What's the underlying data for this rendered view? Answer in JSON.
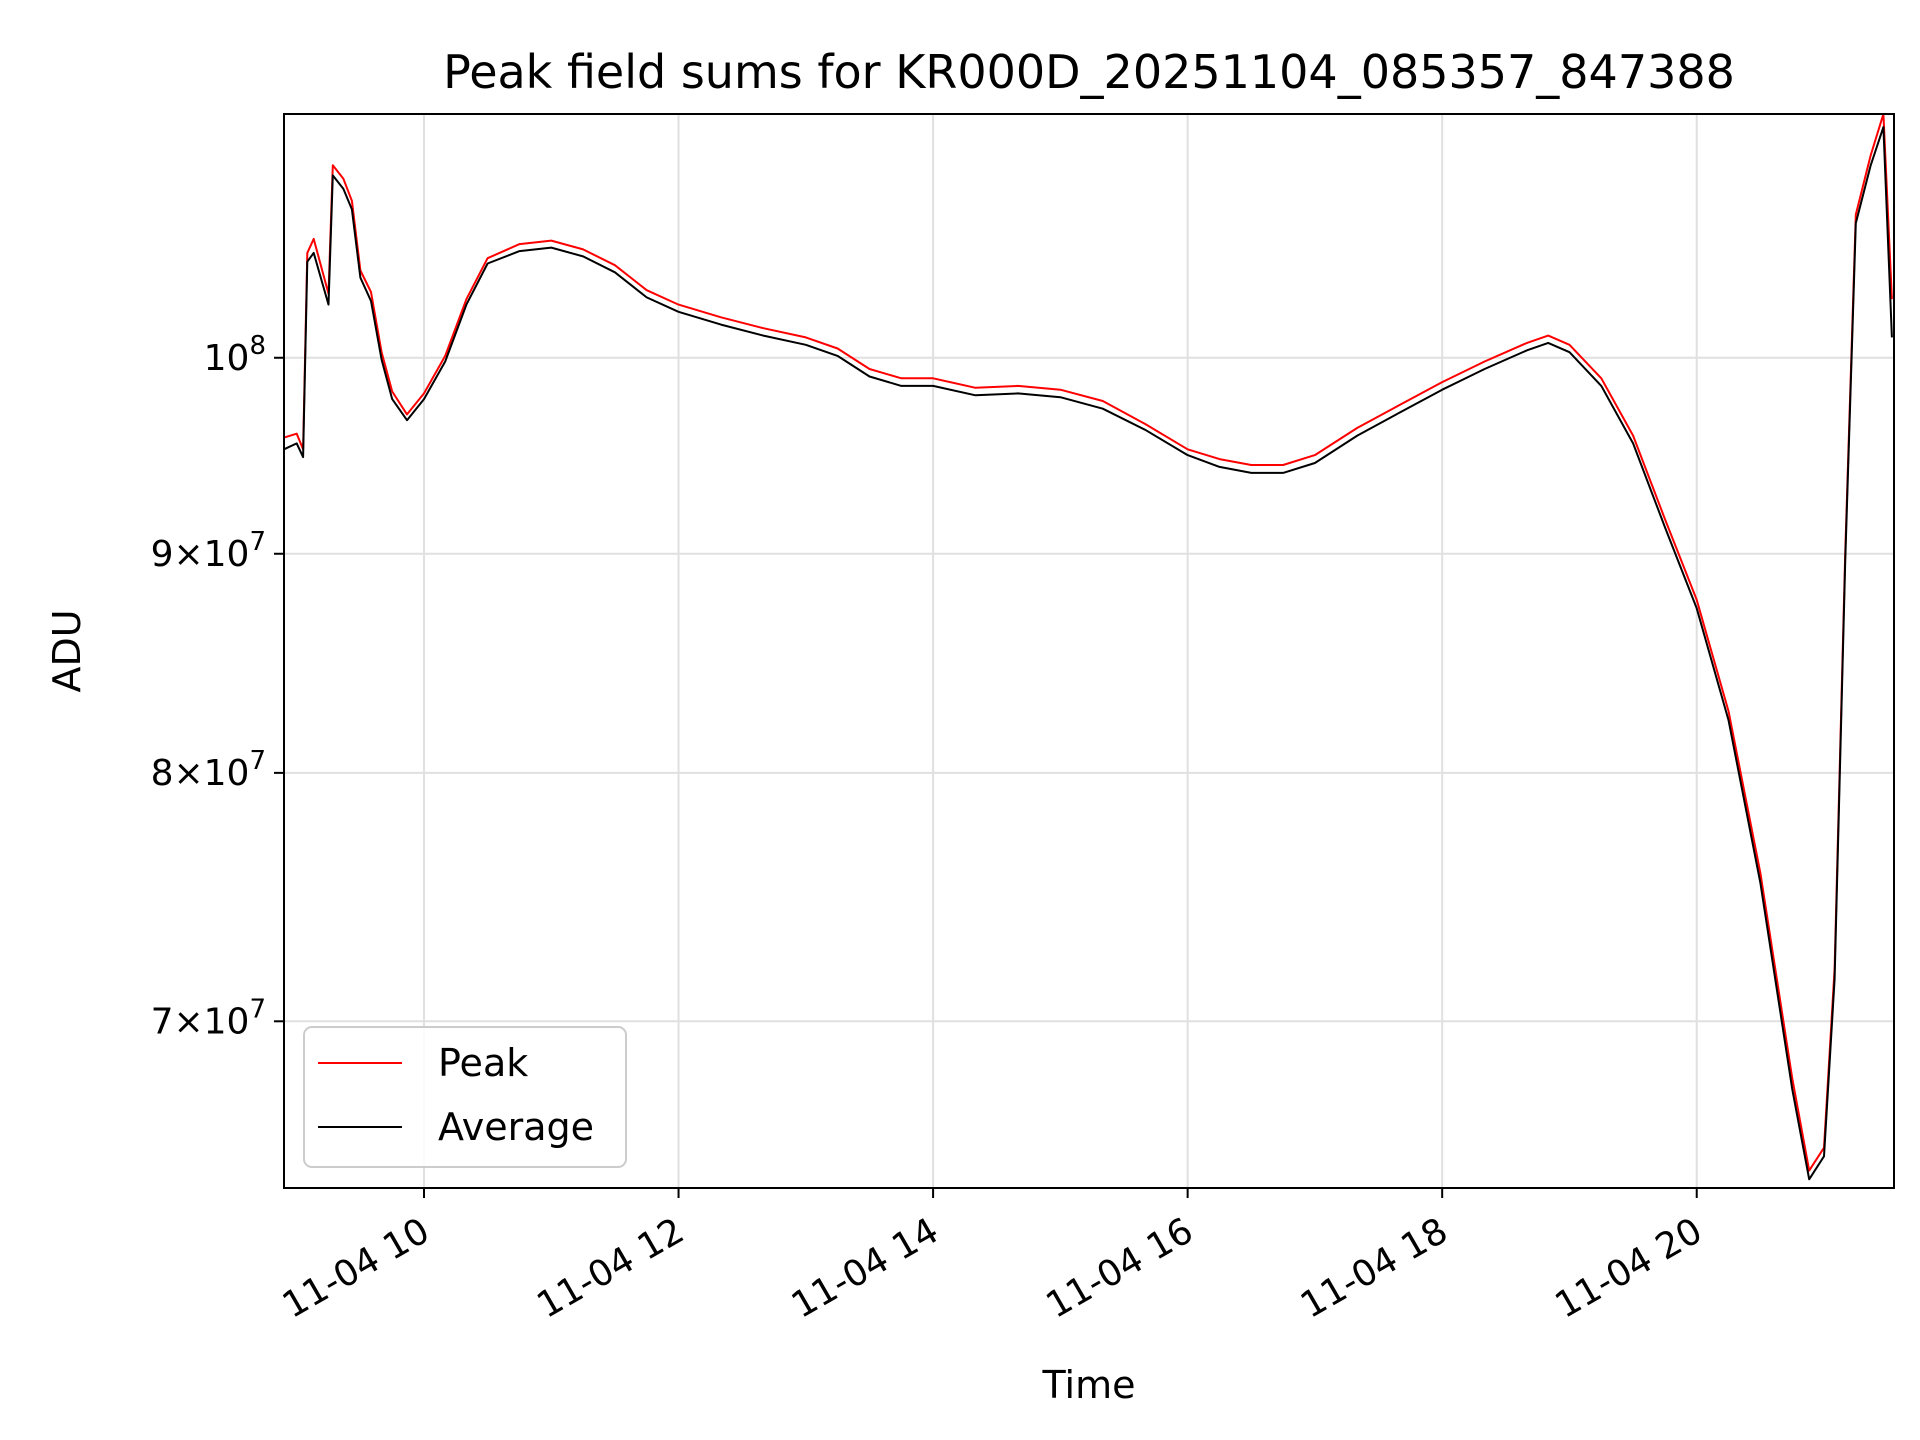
{
  "chart_data": {
    "type": "line",
    "title": "Peak field sums for KR000D_20251104_085357_847388",
    "xlabel": "Time",
    "ylabel": "ADU",
    "y_scale": "log",
    "ylim": [
      64000000,
      114000000
    ],
    "xlim": [
      "2025-11-04 08:54",
      "2025-11-04 21:33"
    ],
    "grid": true,
    "legend_position": "lower-left",
    "x_ticks": [
      {
        "value": "2025-11-04 10:00",
        "label": "11-04 10"
      },
      {
        "value": "2025-11-04 12:00",
        "label": "11-04 12"
      },
      {
        "value": "2025-11-04 14:00",
        "label": "11-04 14"
      },
      {
        "value": "2025-11-04 16:00",
        "label": "11-04 16"
      },
      {
        "value": "2025-11-04 18:00",
        "label": "11-04 18"
      },
      {
        "value": "2025-11-04 20:00",
        "label": "11-04 20"
      }
    ],
    "y_ticks": [
      {
        "value": 70000000,
        "label_mantissa": "7",
        "label_exponent": "7"
      },
      {
        "value": 80000000,
        "label_mantissa": "8",
        "label_exponent": "7"
      },
      {
        "value": 90000000,
        "label_mantissa": "9",
        "label_exponent": "7"
      },
      {
        "value": 100000000,
        "label_base": "10",
        "label_exponent": "8"
      }
    ],
    "series": [
      {
        "name": "Peak",
        "color": "#ff0000",
        "points": [
          [
            "2025-11-04 08:54",
            95800000
          ],
          [
            "2025-11-04 09:00",
            96000000
          ],
          [
            "2025-11-04 09:03",
            95200000
          ],
          [
            "2025-11-04 09:05",
            105800000
          ],
          [
            "2025-11-04 09:08",
            106600000
          ],
          [
            "2025-11-04 09:15",
            103500000
          ],
          [
            "2025-11-04 09:17",
            110900000
          ],
          [
            "2025-11-04 09:22",
            110100000
          ],
          [
            "2025-11-04 09:26",
            108800000
          ],
          [
            "2025-11-04 09:30",
            104800000
          ],
          [
            "2025-11-04 09:35",
            103600000
          ],
          [
            "2025-11-04 09:40",
            100300000
          ],
          [
            "2025-11-04 09:45",
            98200000
          ],
          [
            "2025-11-04 09:52",
            97000000
          ],
          [
            "2025-11-04 10:00",
            98100000
          ],
          [
            "2025-11-04 10:10",
            100100000
          ],
          [
            "2025-11-04 10:20",
            103200000
          ],
          [
            "2025-11-04 10:30",
            105500000
          ],
          [
            "2025-11-04 10:45",
            106300000
          ],
          [
            "2025-11-04 11:00",
            106500000
          ],
          [
            "2025-11-04 11:15",
            106000000
          ],
          [
            "2025-11-04 11:30",
            105100000
          ],
          [
            "2025-11-04 11:45",
            103700000
          ],
          [
            "2025-11-04 12:00",
            102900000
          ],
          [
            "2025-11-04 12:20",
            102200000
          ],
          [
            "2025-11-04 12:40",
            101600000
          ],
          [
            "2025-11-04 13:00",
            101100000
          ],
          [
            "2025-11-04 13:15",
            100500000
          ],
          [
            "2025-11-04 13:30",
            99400000
          ],
          [
            "2025-11-04 13:45",
            98900000
          ],
          [
            "2025-11-04 14:00",
            98900000
          ],
          [
            "2025-11-04 14:20",
            98400000
          ],
          [
            "2025-11-04 14:40",
            98500000
          ],
          [
            "2025-11-04 15:00",
            98300000
          ],
          [
            "2025-11-04 15:20",
            97700000
          ],
          [
            "2025-11-04 15:40",
            96500000
          ],
          [
            "2025-11-04 16:00",
            95200000
          ],
          [
            "2025-11-04 16:15",
            94700000
          ],
          [
            "2025-11-04 16:30",
            94400000
          ],
          [
            "2025-11-04 16:45",
            94400000
          ],
          [
            "2025-11-04 17:00",
            94900000
          ],
          [
            "2025-11-04 17:20",
            96300000
          ],
          [
            "2025-11-04 17:40",
            97500000
          ],
          [
            "2025-11-04 18:00",
            98700000
          ],
          [
            "2025-11-04 18:20",
            99800000
          ],
          [
            "2025-11-04 18:40",
            100800000
          ],
          [
            "2025-11-04 18:50",
            101200000
          ],
          [
            "2025-11-04 19:00",
            100700000
          ],
          [
            "2025-11-04 19:15",
            98900000
          ],
          [
            "2025-11-04 19:30",
            95900000
          ],
          [
            "2025-11-04 19:45",
            91700000
          ],
          [
            "2025-11-04 20:00",
            87800000
          ],
          [
            "2025-11-04 20:15",
            82700000
          ],
          [
            "2025-11-04 20:30",
            75800000
          ],
          [
            "2025-11-04 20:45",
            67900000
          ],
          [
            "2025-11-04 20:53",
            64600000
          ],
          [
            "2025-11-04 21:00",
            65400000
          ],
          [
            "2025-11-04 21:05",
            72000000
          ],
          [
            "2025-11-04 21:10",
            90000000
          ],
          [
            "2025-11-04 21:15",
            108000000
          ],
          [
            "2025-11-04 21:22",
            111500000
          ],
          [
            "2025-11-04 21:28",
            114000000
          ],
          [
            "2025-11-04 21:32",
            103200000
          ]
        ]
      },
      {
        "name": "Average",
        "color": "#000000",
        "points": [
          [
            "2025-11-04 08:54",
            95200000
          ],
          [
            "2025-11-04 09:00",
            95500000
          ],
          [
            "2025-11-04 09:03",
            94800000
          ],
          [
            "2025-11-04 09:05",
            105300000
          ],
          [
            "2025-11-04 09:08",
            105800000
          ],
          [
            "2025-11-04 09:15",
            102900000
          ],
          [
            "2025-11-04 09:17",
            110300000
          ],
          [
            "2025-11-04 09:22",
            109500000
          ],
          [
            "2025-11-04 09:26",
            108300000
          ],
          [
            "2025-11-04 09:30",
            104400000
          ],
          [
            "2025-11-04 09:35",
            103100000
          ],
          [
            "2025-11-04 09:40",
            99900000
          ],
          [
            "2025-11-04 09:45",
            97800000
          ],
          [
            "2025-11-04 09:52",
            96700000
          ],
          [
            "2025-11-04 10:00",
            97800000
          ],
          [
            "2025-11-04 10:10",
            99800000
          ],
          [
            "2025-11-04 10:20",
            102900000
          ],
          [
            "2025-11-04 10:30",
            105200000
          ],
          [
            "2025-11-04 10:45",
            105900000
          ],
          [
            "2025-11-04 11:00",
            106100000
          ],
          [
            "2025-11-04 11:15",
            105600000
          ],
          [
            "2025-11-04 11:30",
            104700000
          ],
          [
            "2025-11-04 11:45",
            103300000
          ],
          [
            "2025-11-04 12:00",
            102500000
          ],
          [
            "2025-11-04 12:20",
            101800000
          ],
          [
            "2025-11-04 12:40",
            101200000
          ],
          [
            "2025-11-04 13:00",
            100700000
          ],
          [
            "2025-11-04 13:15",
            100100000
          ],
          [
            "2025-11-04 13:30",
            99000000
          ],
          [
            "2025-11-04 13:45",
            98500000
          ],
          [
            "2025-11-04 14:00",
            98500000
          ],
          [
            "2025-11-04 14:20",
            98000000
          ],
          [
            "2025-11-04 14:40",
            98100000
          ],
          [
            "2025-11-04 15:00",
            97900000
          ],
          [
            "2025-11-04 15:20",
            97300000
          ],
          [
            "2025-11-04 15:40",
            96200000
          ],
          [
            "2025-11-04 16:00",
            94900000
          ],
          [
            "2025-11-04 16:15",
            94300000
          ],
          [
            "2025-11-04 16:30",
            94000000
          ],
          [
            "2025-11-04 16:45",
            94000000
          ],
          [
            "2025-11-04 17:00",
            94500000
          ],
          [
            "2025-11-04 17:20",
            95900000
          ],
          [
            "2025-11-04 17:40",
            97100000
          ],
          [
            "2025-11-04 18:00",
            98300000
          ],
          [
            "2025-11-04 18:20",
            99400000
          ],
          [
            "2025-11-04 18:40",
            100400000
          ],
          [
            "2025-11-04 18:50",
            100800000
          ],
          [
            "2025-11-04 19:00",
            100300000
          ],
          [
            "2025-11-04 19:15",
            98500000
          ],
          [
            "2025-11-04 19:30",
            95500000
          ],
          [
            "2025-11-04 19:45",
            91300000
          ],
          [
            "2025-11-04 20:00",
            87400000
          ],
          [
            "2025-11-04 20:15",
            82300000
          ],
          [
            "2025-11-04 20:30",
            75400000
          ],
          [
            "2025-11-04 20:45",
            67500000
          ],
          [
            "2025-11-04 20:53",
            64300000
          ],
          [
            "2025-11-04 21:00",
            65100000
          ],
          [
            "2025-11-04 21:05",
            71600000
          ],
          [
            "2025-11-04 21:10",
            89600000
          ],
          [
            "2025-11-04 21:15",
            107500000
          ],
          [
            "2025-11-04 21:22",
            110900000
          ],
          [
            "2025-11-04 21:28",
            113200000
          ],
          [
            "2025-11-04 21:32",
            101100000
          ]
        ]
      }
    ]
  }
}
